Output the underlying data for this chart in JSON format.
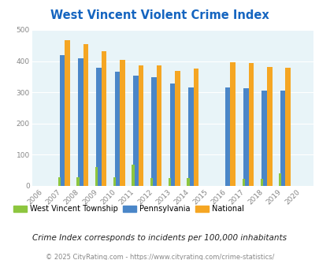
{
  "title": "West Vincent Violent Crime Index",
  "years": [
    2006,
    2007,
    2008,
    2009,
    2010,
    2011,
    2012,
    2013,
    2014,
    2015,
    2016,
    2017,
    2018,
    2019,
    2020
  ],
  "west_vincent": [
    0,
    27,
    27,
    60,
    27,
    67,
    25,
    25,
    25,
    0,
    0,
    22,
    22,
    40,
    0
  ],
  "pennsylvania": [
    0,
    418,
    408,
    379,
    365,
    353,
    349,
    329,
    315,
    0,
    315,
    312,
    305,
    306,
    0
  ],
  "national": [
    0,
    467,
    455,
    432,
    405,
    387,
    387,
    368,
    376,
    0,
    397,
    394,
    381,
    379,
    0
  ],
  "color_wv": "#8DC63F",
  "color_pa": "#4A86C8",
  "color_nat": "#F5A623",
  "bg_color": "#E8F4F8",
  "ylim": [
    0,
    500
  ],
  "yticks": [
    0,
    100,
    200,
    300,
    400,
    500
  ],
  "title_color": "#1565C0",
  "footer_text": "Crime Index corresponds to incidents per 100,000 inhabitants",
  "copyright_text": "© 2025 CityRating.com - https://www.cityrating.com/crime-statistics/",
  "legend_labels": [
    "West Vincent Township",
    "Pennsylvania",
    "National"
  ],
  "bar_width": 0.28,
  "grid_color": "#FFFFFF",
  "outer_bg": "#FFFFFF",
  "tick_color": "#888888",
  "footer_color": "#222222",
  "copyright_color": "#888888"
}
